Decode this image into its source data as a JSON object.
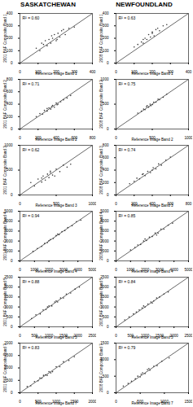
{
  "headers": [
    "SASKATCHEWAN",
    "NEWFOUNDLAND"
  ],
  "chart_data": [
    {
      "type": "scatter",
      "x_label": "Reference Image Band 1",
      "y_label": "2001 BAF Composite Band 1",
      "annotations": [
        "R² = 0.60"
      ],
      "color": "#333333",
      "marker": "circle",
      "xlim": [
        0,
        400
      ],
      "ylim": [
        0,
        400
      ],
      "xticks": [
        0,
        100,
        200,
        300,
        400
      ],
      "yticks": [
        0,
        100,
        200,
        300,
        400
      ],
      "x": [
        90,
        110,
        130,
        140,
        150,
        160,
        170,
        180,
        190,
        200,
        210,
        220,
        230,
        250,
        270,
        300,
        120,
        175,
        205,
        240
      ],
      "values": [
        120,
        100,
        150,
        180,
        140,
        190,
        160,
        200,
        230,
        180,
        240,
        210,
        260,
        230,
        280,
        290,
        160,
        220,
        190,
        270
      ]
    },
    {
      "type": "scatter",
      "x_label": "Reference Image Band 2",
      "y_label": "2001 BAF Composite Band 2",
      "annotations": [
        "R² = 0.71"
      ],
      "color": "#333333",
      "marker": "circle",
      "xlim": [
        0,
        800
      ],
      "ylim": [
        0,
        800
      ],
      "xticks": [
        0,
        200,
        400,
        600,
        800
      ],
      "yticks": [
        0,
        200,
        400,
        600,
        800
      ],
      "x": [
        180,
        220,
        250,
        270,
        300,
        320,
        340,
        360,
        380,
        400,
        420,
        450,
        480,
        520,
        560,
        300,
        350,
        410
      ],
      "values": [
        200,
        250,
        240,
        300,
        290,
        340,
        320,
        380,
        350,
        420,
        400,
        440,
        470,
        500,
        540,
        330,
        360,
        390
      ]
    },
    {
      "type": "scatter",
      "x_label": "Reference Image Band 3",
      "y_label": "2001 BAF Composite Band 3",
      "annotations": [
        "R² = 0.62"
      ],
      "color": "#333333",
      "marker": "circle",
      "xlim": [
        0,
        1000
      ],
      "ylim": [
        0,
        1000
      ],
      "xticks": [
        0,
        500,
        1000
      ],
      "yticks": [
        0,
        500,
        1000
      ],
      "x": [
        150,
        200,
        250,
        300,
        320,
        350,
        380,
        400,
        420,
        450,
        480,
        500,
        550,
        600,
        650,
        700,
        300,
        420
      ],
      "values": [
        250,
        180,
        320,
        260,
        380,
        300,
        420,
        350,
        480,
        400,
        380,
        520,
        470,
        600,
        560,
        620,
        340,
        450
      ]
    },
    {
      "type": "scatter",
      "x_label": "Reference Image Band 4",
      "y_label": "2001 BAF Composite Band 4",
      "annotations": [
        "R² = 0.94"
      ],
      "color": "#333333",
      "marker": "circle",
      "xlim": [
        0,
        5000
      ],
      "ylim": [
        0,
        5000
      ],
      "xticks": [
        0,
        1000,
        2000,
        3000,
        4000,
        5000
      ],
      "yticks": [
        0,
        1000,
        2000,
        3000,
        4000,
        5000
      ],
      "x": [
        900,
        1200,
        1500,
        1700,
        1900,
        2100,
        2300,
        2500,
        2700,
        2900,
        3100,
        3300,
        3600,
        3900,
        4200,
        2000,
        2600
      ],
      "values": [
        950,
        1250,
        1450,
        1750,
        1850,
        2150,
        2250,
        2550,
        2650,
        2950,
        3050,
        3350,
        3550,
        3950,
        4100,
        2050,
        2700
      ]
    },
    {
      "type": "scatter",
      "x_label": "Reference Image Band 5",
      "y_label": "2001 BAF Composite Band 5",
      "annotations": [
        "R² = 0.88"
      ],
      "color": "#333333",
      "marker": "circle",
      "xlim": [
        0,
        2500
      ],
      "ylim": [
        0,
        2500
      ],
      "xticks": [
        0,
        500,
        1000,
        1500,
        2000,
        2500
      ],
      "yticks": [
        0,
        500,
        1000,
        1500,
        2000,
        2500
      ],
      "x": [
        400,
        550,
        700,
        800,
        900,
        1000,
        1100,
        1200,
        1300,
        1400,
        1500,
        1600,
        1750,
        1900,
        2050,
        950,
        1250
      ],
      "values": [
        420,
        600,
        650,
        850,
        880,
        1050,
        1050,
        1250,
        1250,
        1450,
        1450,
        1650,
        1700,
        1900,
        2000,
        1000,
        1300
      ]
    },
    {
      "type": "scatter",
      "x_label": "Reference Image Band 7",
      "y_label": "2001 BAF Composite Band 7",
      "annotations": [
        "R² = 0.83"
      ],
      "color": "#333333",
      "marker": "circle",
      "xlim": [
        0,
        2000
      ],
      "ylim": [
        0,
        2000
      ],
      "xticks": [
        0,
        500,
        1000,
        1500,
        2000
      ],
      "yticks": [
        0,
        500,
        1000,
        1500,
        2000
      ],
      "x": [
        200,
        300,
        400,
        500,
        550,
        600,
        700,
        750,
        800,
        900,
        1000,
        1100,
        1200,
        1350,
        1500,
        650,
        850
      ],
      "values": [
        250,
        280,
        450,
        480,
        600,
        580,
        720,
        700,
        850,
        850,
        1050,
        1050,
        1250,
        1300,
        1450,
        700,
        800
      ]
    },
    {
      "type": "scatter",
      "x_label": "Reference Image Band 1",
      "y_label": "2008 BAF Composite Band 1",
      "annotations": [
        "R² = 0.63"
      ],
      "color": "#333333",
      "marker": "circle",
      "xlim": [
        0,
        400
      ],
      "ylim": [
        0,
        400
      ],
      "xticks": [
        0,
        100,
        200,
        300,
        400
      ],
      "yticks": [
        0,
        100,
        200,
        300,
        400
      ],
      "x": [
        100,
        120,
        140,
        150,
        160,
        170,
        180,
        190,
        200,
        210,
        220,
        240,
        260,
        280,
        150,
        200,
        230
      ],
      "values": [
        130,
        150,
        170,
        160,
        200,
        190,
        230,
        210,
        240,
        220,
        270,
        260,
        300,
        310,
        190,
        250,
        280
      ]
    },
    {
      "type": "scatter",
      "x_label": "Reference Image Band 2",
      "y_label": "2008 BAF Composite Band 2",
      "annotations": [
        "R² = 0.75"
      ],
      "color": "#333333",
      "marker": "circle",
      "xlim": [
        0,
        1000
      ],
      "ylim": [
        0,
        1000
      ],
      "xticks": [
        0,
        500,
        1000
      ],
      "yticks": [
        0,
        500,
        1000
      ],
      "x": [
        300,
        350,
        380,
        400,
        420,
        450,
        470,
        500,
        520,
        550,
        580,
        600,
        650,
        700,
        480,
        430
      ],
      "values": [
        320,
        360,
        400,
        390,
        450,
        440,
        500,
        490,
        540,
        540,
        600,
        590,
        640,
        700,
        470,
        470
      ]
    },
    {
      "type": "scatter",
      "x_label": "Reference Image Band 3",
      "y_label": "2008 BAF Composite Band 3",
      "annotations": [
        "R² = 0.74"
      ],
      "color": "#333333",
      "marker": "circle",
      "xlim": [
        0,
        800
      ],
      "ylim": [
        0,
        800
      ],
      "xticks": [
        0,
        200,
        400,
        600,
        800
      ],
      "yticks": [
        0,
        200,
        400,
        600,
        800
      ],
      "x": [
        150,
        200,
        230,
        260,
        290,
        320,
        350,
        380,
        410,
        440,
        470,
        500,
        550,
        600,
        300,
        400
      ],
      "values": [
        180,
        220,
        270,
        260,
        330,
        310,
        380,
        360,
        440,
        420,
        500,
        480,
        560,
        610,
        340,
        400
      ]
    },
    {
      "type": "scatter",
      "x_label": "Reference Image Band 4",
      "y_label": "2008 BAF Composite Band 4",
      "annotations": [
        "R² = 0.85"
      ],
      "color": "#333333",
      "marker": "circle",
      "xlim": [
        0,
        5000
      ],
      "ylim": [
        0,
        5000
      ],
      "xticks": [
        0,
        1000,
        2000,
        3000,
        4000,
        5000
      ],
      "yticks": [
        0,
        1000,
        2000,
        3000,
        4000,
        5000
      ],
      "x": [
        1000,
        1300,
        1500,
        1700,
        1900,
        2100,
        2300,
        2500,
        2700,
        2900,
        3100,
        3300,
        3600,
        3900,
        2000,
        2800
      ],
      "values": [
        1100,
        1350,
        1600,
        1650,
        2000,
        2050,
        2400,
        2450,
        2800,
        2800,
        3200,
        3200,
        3600,
        3800,
        2200,
        2600
      ]
    },
    {
      "type": "scatter",
      "x_label": "Reference Image Band 5",
      "y_label": "2008 BAF Composite Band 5",
      "annotations": [
        "R² = 0.84"
      ],
      "color": "#333333",
      "marker": "circle",
      "xlim": [
        0,
        2500
      ],
      "ylim": [
        0,
        2500
      ],
      "xticks": [
        0,
        500,
        1000,
        1500,
        2000,
        2500
      ],
      "yticks": [
        0,
        500,
        1000,
        1500,
        2000,
        2500
      ],
      "x": [
        300,
        450,
        600,
        700,
        800,
        900,
        1000,
        1100,
        1200,
        1300,
        1400,
        1500,
        1650,
        1800,
        950,
        1250
      ],
      "values": [
        350,
        500,
        650,
        750,
        850,
        950,
        1000,
        1150,
        1250,
        1300,
        1450,
        1500,
        1650,
        1750,
        1050,
        1200
      ]
    },
    {
      "type": "scatter",
      "x_label": "Reference Image Band 7",
      "y_label": "2008 BAF Composite Band 7",
      "annotations": [
        "R² = 0.79"
      ],
      "color": "#333333",
      "marker": "circle",
      "xlim": [
        0,
        1500
      ],
      "ylim": [
        0,
        1500
      ],
      "xticks": [
        0,
        500,
        1000,
        1500
      ],
      "yticks": [
        0,
        500,
        1000,
        1500
      ],
      "x": [
        150,
        250,
        320,
        400,
        450,
        500,
        550,
        600,
        650,
        700,
        780,
        850,
        950,
        1100,
        520,
        680
      ],
      "values": [
        200,
        280,
        350,
        420,
        500,
        480,
        600,
        580,
        700,
        680,
        800,
        820,
        950,
        1050,
        560,
        730
      ]
    }
  ]
}
